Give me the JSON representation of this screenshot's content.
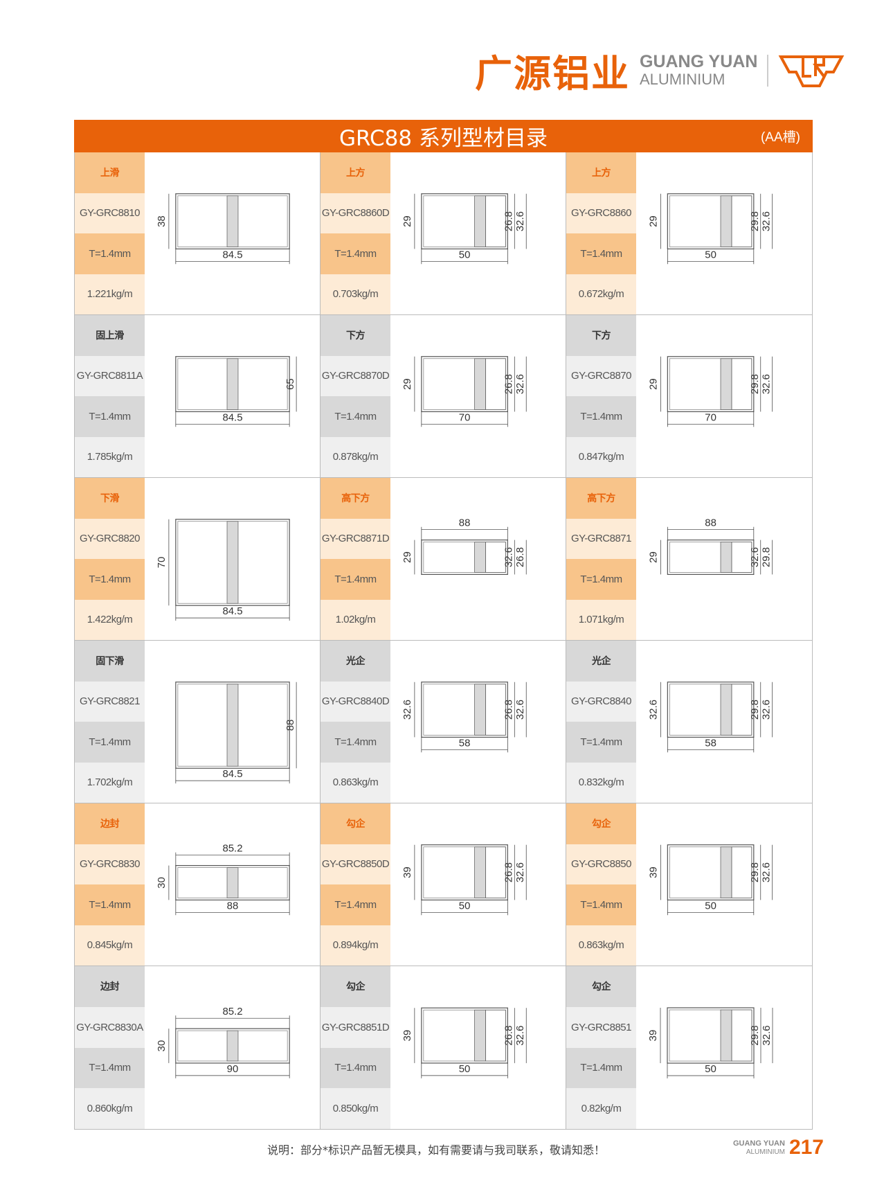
{
  "header": {
    "brand_cn": "广源铝业",
    "brand_en_1": "GUANG YUAN",
    "brand_en_2": "ALUMINIUM",
    "logo_text": "GR",
    "brand_color": "#e8620a"
  },
  "title": {
    "main": "GRC88 系列型材目录",
    "suffix": "(AA槽)"
  },
  "rows": [
    {
      "theme": "orange",
      "cells": [
        {
          "name": "上滑",
          "code": "GY-GRC8810",
          "thickness": "T=1.4mm",
          "weight": "1.221kg/m",
          "dims": {
            "left": "38",
            "bottom": "84.5"
          }
        },
        {
          "name": "上方",
          "code": "GY-GRC8860D",
          "thickness": "T=1.4mm",
          "weight": "0.703kg/m",
          "dims": {
            "left": "29",
            "right": [
              "26.8",
              "32.6"
            ],
            "bottom": "50"
          }
        },
        {
          "name": "上方",
          "code": "GY-GRC8860",
          "thickness": "T=1.4mm",
          "weight": "0.672kg/m",
          "dims": {
            "left": "29",
            "right": [
              "29.8",
              "32.6"
            ],
            "bottom": "50"
          }
        }
      ]
    },
    {
      "theme": "gray",
      "cells": [
        {
          "name": "固上滑",
          "code": "GY-GRC8811A",
          "thickness": "T=1.4mm",
          "weight": "1.785kg/m",
          "dims": {
            "right": [
              "65"
            ],
            "bottom": "84.5"
          }
        },
        {
          "name": "下方",
          "code": "GY-GRC8870D",
          "thickness": "T=1.4mm",
          "weight": "0.878kg/m",
          "dims": {
            "left": "29",
            "right": [
              "26.8",
              "32.6"
            ],
            "bottom": "70"
          }
        },
        {
          "name": "下方",
          "code": "GY-GRC8870",
          "thickness": "T=1.4mm",
          "weight": "0.847kg/m",
          "dims": {
            "left": "29",
            "right": [
              "29.8",
              "32.6"
            ],
            "bottom": "70"
          }
        }
      ]
    },
    {
      "theme": "orange",
      "cells": [
        {
          "name": "下滑",
          "code": "GY-GRC8820",
          "thickness": "T=1.4mm",
          "weight": "1.422kg/m",
          "dims": {
            "left": "70",
            "bottom": "84.5"
          }
        },
        {
          "name": "高下方",
          "code": "GY-GRC8871D",
          "thickness": "T=1.4mm",
          "weight": "1.02kg/m",
          "dims": {
            "top": "88",
            "left": "29",
            "right": [
              "32.6",
              "26.8"
            ]
          }
        },
        {
          "name": "高下方",
          "code": "GY-GRC8871",
          "thickness": "T=1.4mm",
          "weight": "1.071kg/m",
          "dims": {
            "top": "88",
            "left": "29",
            "right": [
              "32.6",
              "29.8"
            ]
          }
        }
      ]
    },
    {
      "theme": "gray",
      "cells": [
        {
          "name": "固下滑",
          "code": "GY-GRC8821",
          "thickness": "T=1.4mm",
          "weight": "1.702kg/m",
          "dims": {
            "right": [
              "88"
            ],
            "bottom": "84.5"
          }
        },
        {
          "name": "光企",
          "code": "GY-GRC8840D",
          "thickness": "T=1.4mm",
          "weight": "0.863kg/m",
          "dims": {
            "left": "32.6",
            "right": [
              "26.8",
              "32.6"
            ],
            "bottom": "58"
          }
        },
        {
          "name": "光企",
          "code": "GY-GRC8840",
          "thickness": "T=1.4mm",
          "weight": "0.832kg/m",
          "dims": {
            "left": "32.6",
            "right": [
              "29.8",
              "32.6"
            ],
            "bottom": "58"
          }
        }
      ]
    },
    {
      "theme": "orange",
      "cells": [
        {
          "name": "边封",
          "code": "GY-GRC8830",
          "thickness": "T=1.4mm",
          "weight": "0.845kg/m",
          "dims": {
            "top": "85.2",
            "left": "30",
            "bottom": "88"
          }
        },
        {
          "name": "勾企",
          "code": "GY-GRC8850D",
          "thickness": "T=1.4mm",
          "weight": "0.894kg/m",
          "dims": {
            "left": "39",
            "right": [
              "26.8",
              "32.6"
            ],
            "bottom": "50"
          }
        },
        {
          "name": "勾企",
          "code": "GY-GRC8850",
          "thickness": "T=1.4mm",
          "weight": "0.863kg/m",
          "dims": {
            "left": "39",
            "right": [
              "29.8",
              "32.6"
            ],
            "bottom": "50"
          }
        }
      ]
    },
    {
      "theme": "gray",
      "cells": [
        {
          "name": "边封",
          "code": "GY-GRC8830A",
          "thickness": "T=1.4mm",
          "weight": "0.860kg/m",
          "dims": {
            "top": "85.2",
            "left": "30",
            "bottom": "90"
          }
        },
        {
          "name": "勾企",
          "code": "GY-GRC8851D",
          "thickness": "T=1.4mm",
          "weight": "0.850kg/m",
          "dims": {
            "left": "39",
            "right": [
              "26.8",
              "32.6"
            ],
            "bottom": "50"
          }
        },
        {
          "name": "勾企",
          "code": "GY-GRC8851",
          "thickness": "T=1.4mm",
          "weight": "0.82kg/m",
          "dims": {
            "left": "39",
            "right": [
              "29.8",
              "32.6"
            ],
            "bottom": "50"
          }
        }
      ]
    }
  ],
  "footer": {
    "note": "说明：部分*标识产品暂无模具，如有需要请与我司联系，敬请知悉！",
    "brand_1": "GUANG YUAN",
    "brand_2": "ALUMINIUM",
    "page": "217"
  }
}
